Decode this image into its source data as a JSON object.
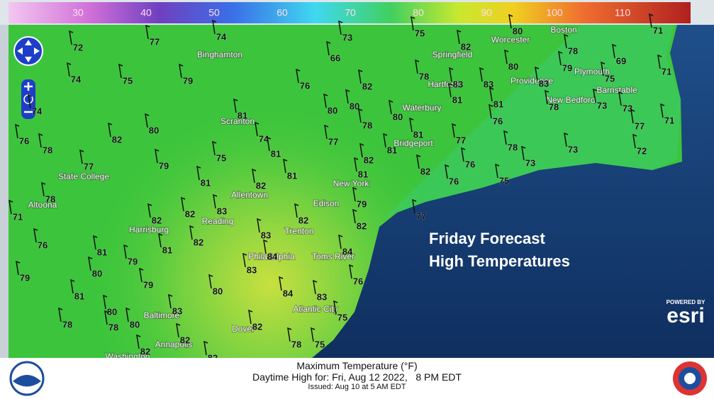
{
  "colorbar": {
    "ticks": [
      30,
      40,
      50,
      60,
      70,
      80,
      90,
      100,
      110
    ]
  },
  "overlay": {
    "line1": "Friday Forecast",
    "line2": "High Temperatures"
  },
  "footer": {
    "title": "Maximum Temperature (°F)",
    "valid": "Daytime High for: Fri, Aug 12 2022,   8 PM EDT",
    "issued": "Issued: Aug 10 at 5 AM EDT"
  },
  "attribution": {
    "powered_by": "POWERED BY",
    "brand": "esri"
  },
  "cities": [
    "Binghamton",
    "Worcester",
    "Boston",
    "Springfield",
    "Hartford",
    "Providence",
    "Plymouth",
    "Barnstable",
    "New Bedford",
    "Waterbury",
    "Bridgeport",
    "Scranton",
    "State College",
    "Allentown",
    "New York",
    "Altoona",
    "Edison",
    "Harrisburg",
    "Reading",
    "Trenton",
    "Philadelphia",
    "Toms River",
    "Atlantic City",
    "Baltimore",
    "Dover",
    "Annapolis",
    "Washington"
  ],
  "temperatures": [
    72,
    77,
    74,
    73,
    75,
    80,
    71,
    82,
    78,
    66,
    80,
    79,
    69,
    71,
    74,
    75,
    79,
    76,
    82,
    78,
    83,
    83,
    83,
    75,
    74,
    81,
    80,
    80,
    80,
    81,
    81,
    78,
    73,
    73,
    76,
    71,
    77,
    76,
    78,
    82,
    80,
    78,
    74,
    81,
    77,
    81,
    82,
    81,
    77,
    78,
    73,
    72,
    77,
    79,
    75,
    81,
    81,
    82,
    76,
    73,
    81,
    82,
    76,
    75,
    78,
    79,
    71,
    82,
    82,
    83,
    82,
    77,
    82,
    76,
    81,
    81,
    82,
    83,
    79,
    80,
    84,
    84,
    83,
    79,
    79,
    80,
    76,
    81,
    84,
    83,
    80,
    83,
    75,
    78,
    80,
    78,
    82,
    82,
    78,
    75,
    82,
    82
  ]
}
